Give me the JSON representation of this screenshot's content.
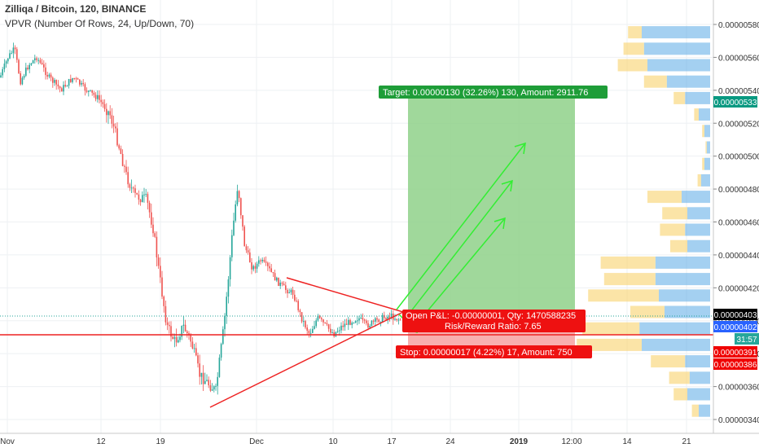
{
  "header": {
    "symbol_line": "Zilliqa / Bitcoin, 120, BINANCE",
    "indicator_line": "VPVR (Number Of Rows, 24, Up/Down, 70)"
  },
  "price_axis": {
    "ticks": [
      "0.00000580",
      "0.00000560",
      "0.00000540",
      "0.00000520",
      "0.00000500",
      "0.00000480",
      "0.00000460",
      "0.00000440",
      "0.00000420",
      "0.00000400",
      "0.00000380",
      "0.00000360",
      "0.00000340"
    ],
    "badges": [
      {
        "label": "0.00000533",
        "color": "#089981"
      },
      {
        "label": "0.00000403",
        "color": "#000000"
      },
      {
        "label": "0.00000402",
        "color": "#2962ff"
      },
      {
        "label": "31:57",
        "color": "#26a69a"
      },
      {
        "label": "0.00000391",
        "color": "#f00000"
      },
      {
        "label": "0.00000386",
        "color": "#f00000"
      }
    ]
  },
  "time_axis": {
    "ticks": [
      "Nov",
      "12",
      "19",
      "Dec",
      "10",
      "17",
      "24",
      "2019",
      "12:00",
      "14",
      "21"
    ]
  },
  "position": {
    "target_label": "Target: 0.00000130 (32.26%) 130, Amount: 2911.76",
    "pnl_label": "Open P&L: -0.00000001, Qty: 1470588235",
    "ratio_label": "Risk/Reward Ratio: 7.65",
    "stop_label": "Stop: 0.00000017 (4.22%) 17, Amount: 750"
  },
  "colors": {
    "up": "#26a69a",
    "down": "#ef5350",
    "target_zone": "#8fd18a",
    "stop_zone": "#f7a6a6",
    "vp_up": "#5aa9e6",
    "vp_down": "#f9d26c",
    "arrows": "#33ee33",
    "triangle": "#ee2222"
  },
  "chart_data": {
    "type": "candlestick",
    "y_range": [
      3.35e-06,
      5.85e-06
    ],
    "volume_profile_rows": [
      {
        "price": 5.75e-06,
        "up": 0.6,
        "down": 0.12
      },
      {
        "price": 5.65e-06,
        "up": 0.58,
        "down": 0.18
      },
      {
        "price": 5.55e-06,
        "up": 0.55,
        "down": 0.26
      },
      {
        "price": 5.45e-06,
        "up": 0.38,
        "down": 0.2
      },
      {
        "price": 5.35e-06,
        "up": 0.22,
        "down": 0.1
      },
      {
        "price": 5.25e-06,
        "up": 0.1,
        "down": 0.04
      },
      {
        "price": 5.15e-06,
        "up": 0.05,
        "down": 0.02
      },
      {
        "price": 5.05e-06,
        "up": 0.03,
        "down": 0.01
      },
      {
        "price": 4.95e-06,
        "up": 0.05,
        "down": 0.02
      },
      {
        "price": 4.85e-06,
        "up": 0.08,
        "down": 0.03
      },
      {
        "price": 4.75e-06,
        "up": 0.25,
        "down": 0.3
      },
      {
        "price": 4.65e-06,
        "up": 0.2,
        "down": 0.22
      },
      {
        "price": 4.55e-06,
        "up": 0.22,
        "down": 0.22
      },
      {
        "price": 4.45e-06,
        "up": 0.2,
        "down": 0.15
      },
      {
        "price": 4.35e-06,
        "up": 0.48,
        "down": 0.48
      },
      {
        "price": 4.25e-06,
        "up": 0.48,
        "down": 0.45
      },
      {
        "price": 4.15e-06,
        "up": 0.45,
        "down": 0.62
      },
      {
        "price": 4.05e-06,
        "up": 0.4,
        "down": 0.3
      },
      {
        "price": 3.95e-06,
        "up": 0.62,
        "down": 0.5
      },
      {
        "price": 3.85e-06,
        "up": 0.6,
        "down": 0.57
      },
      {
        "price": 3.75e-06,
        "up": 0.22,
        "down": 0.3
      },
      {
        "price": 3.65e-06,
        "up": 0.18,
        "down": 0.18
      },
      {
        "price": 3.55e-06,
        "up": 0.2,
        "down": 0.12
      },
      {
        "price": 3.45e-06,
        "up": 0.1,
        "down": 0.06
      }
    ]
  }
}
